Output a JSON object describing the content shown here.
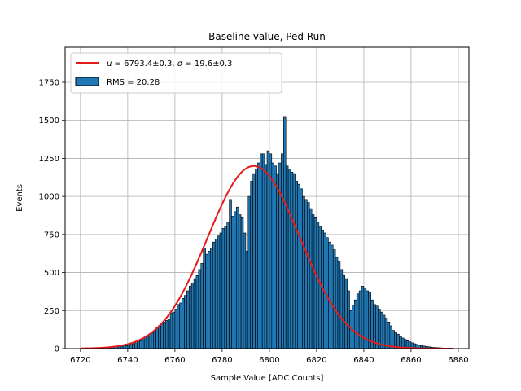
{
  "chart_data": {
    "type": "bar",
    "title": "Baseline value, Ped Run",
    "xlabel": "Sample Value [ADC Counts]",
    "ylabel": "Events",
    "xlim": [
      6713.5,
      6884.5
    ],
    "ylim": [
      0,
      1980
    ],
    "xticks": [
      6720,
      6740,
      6760,
      6780,
      6800,
      6820,
      6840,
      6860,
      6880
    ],
    "yticks": [
      0,
      250,
      500,
      750,
      1000,
      1250,
      1500,
      1750
    ],
    "grid": true,
    "legend_position": "top-left",
    "colors": {
      "bars": "#1f77b4",
      "bar_edge": "#000000",
      "fit": "#e41a1c",
      "grid": "#b0b0b0"
    },
    "series": [
      {
        "type": "histogram",
        "label": "RMS = 20.28",
        "bin_start": 6720,
        "bin_width": 1,
        "values": [
          0,
          1,
          1,
          1,
          2,
          2,
          2,
          3,
          3,
          4,
          5,
          6,
          7,
          9,
          10,
          11,
          14,
          17,
          18,
          20,
          24,
          28,
          32,
          38,
          45,
          52,
          60,
          75,
          88,
          95,
          105,
          120,
          140,
          150,
          165,
          175,
          185,
          195,
          235,
          240,
          260,
          290,
          300,
          330,
          350,
          380,
          410,
          430,
          460,
          480,
          520,
          560,
          660,
          620,
          640,
          660,
          700,
          720,
          740,
          760,
          790,
          800,
          830,
          980,
          870,
          900,
          930,
          880,
          860,
          760,
          640,
          1000,
          1100,
          1150,
          1180,
          1220,
          1280,
          1280,
          1210,
          1300,
          1280,
          1220,
          1200,
          1150,
          1220,
          1280,
          1520,
          1200,
          1180,
          1160,
          1150,
          1100,
          1080,
          1050,
          1000,
          980,
          960,
          920,
          880,
          860,
          830,
          800,
          780,
          760,
          730,
          700,
          680,
          650,
          600,
          570,
          520,
          480,
          460,
          380,
          250,
          280,
          320,
          360,
          380,
          410,
          400,
          380,
          370,
          320,
          290,
          280,
          260,
          240,
          220,
          200,
          175,
          150,
          120,
          105,
          95,
          80,
          70,
          60,
          52,
          45,
          38,
          32,
          28,
          24,
          20,
          17,
          14,
          12,
          10,
          8,
          7,
          6,
          5,
          4,
          3,
          3,
          2,
          2,
          1,
          1,
          1,
          0
        ]
      },
      {
        "type": "gaussian_fit",
        "label": "μ = 6793.4±0.3, σ = 19.6±0.3",
        "label_math": {
          "mu_symbol": "μ",
          "mu_value": "6793.4±0.3",
          "sigma_symbol": "σ",
          "sigma_value": "19.6±0.3"
        },
        "amplitude": 1200,
        "mu": 6793.4,
        "sigma": 19.6,
        "x_range": [
          6720,
          6878
        ]
      }
    ]
  }
}
